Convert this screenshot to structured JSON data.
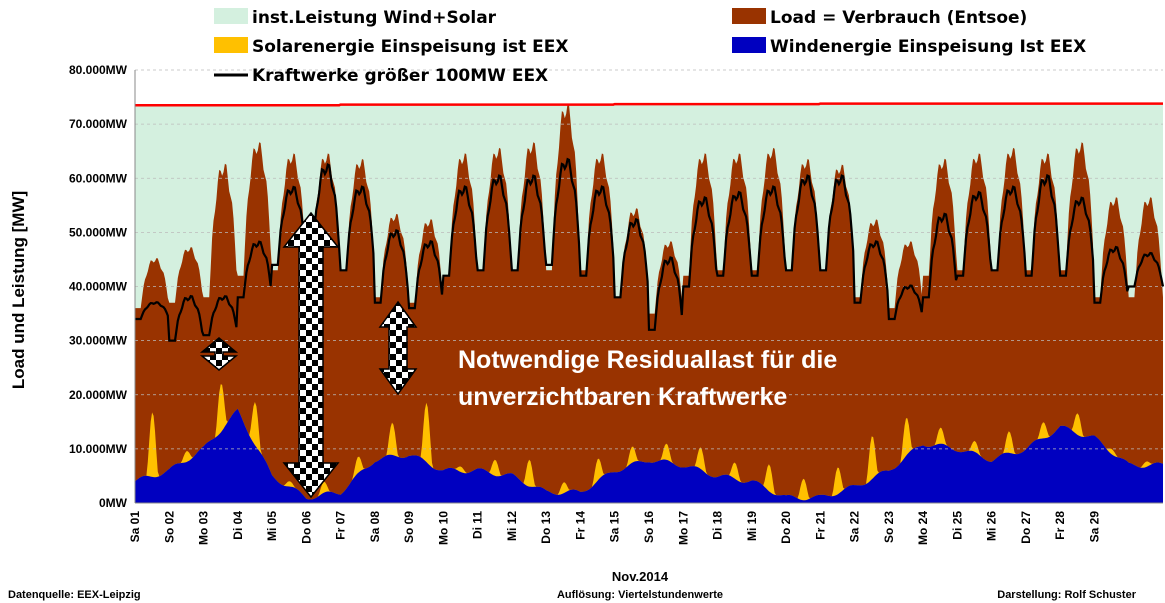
{
  "chart_data": {
    "type": "area",
    "title": "",
    "xlabel": "Nov.2014",
    "ylabel": "Load und Leistung  [MW]",
    "ylim": [
      0,
      80000
    ],
    "yticks": [
      "0MW",
      "10.000MW",
      "20.000MW",
      "30.000MW",
      "40.000MW",
      "50.000MW",
      "60.000MW",
      "70.000MW",
      "80.000MW"
    ],
    "ytick_values": [
      0,
      10000,
      20000,
      30000,
      40000,
      50000,
      60000,
      70000,
      80000
    ],
    "grid": true,
    "legend_position": "top",
    "categories": [
      "Sa 01",
      "So 02",
      "Mo 03",
      "Di 04",
      "Mi 05",
      "Do 06",
      "Fr 07",
      "Sa 08",
      "So 09",
      "Mo 10",
      "Di 11",
      "Mi 12",
      "Do 13",
      "Fr 14",
      "Sa 15",
      "So 16",
      "Mo 17",
      "Di 18",
      "Mi 19",
      "Do 20",
      "Fr 21",
      "Sa 22",
      "So 23",
      "Mo 24",
      "Di 25",
      "Mi 26",
      "Do 27",
      "Fr 28",
      "Sa 29",
      ""
    ],
    "series": [
      {
        "name": "inst.Leistung Wind+Solar",
        "color": "#d4f0df",
        "values": [
          73500,
          73500,
          73500,
          73500,
          73500,
          73500,
          73600,
          73600,
          73600,
          73600,
          73600,
          73600,
          73600,
          73600,
          73700,
          73700,
          73700,
          73700,
          73700,
          73700,
          73800,
          73800,
          73800,
          73800,
          73800,
          73800,
          73800,
          73800,
          73800,
          73800
        ]
      },
      {
        "name": "Load =  Verbrauch (Entsoe)",
        "color": "#993300",
        "peak": [
          45000,
          47000,
          62000,
          66000,
          64000,
          64000,
          63000,
          53000,
          52000,
          64000,
          65000,
          66000,
          73000,
          64000,
          54000,
          48000,
          64000,
          64000,
          65000,
          63000,
          62000,
          52000,
          48000,
          63000,
          64000,
          65000,
          64000,
          66000,
          56000,
          56000
        ],
        "min": [
          36000,
          37000,
          38000,
          42000,
          43000,
          43000,
          43000,
          38000,
          37000,
          42000,
          43000,
          43000,
          43000,
          43000,
          38000,
          35000,
          42000,
          43000,
          43000,
          43000,
          43000,
          38000,
          36000,
          42000,
          43000,
          43000,
          43000,
          43000,
          38000,
          38000
        ]
      },
      {
        "name": "Solarenergie Einspeisung ist EEX",
        "color": "#ffc000",
        "peak": [
          12000,
          2000,
          9000,
          8000,
          1000,
          2000,
          3000,
          6000,
          11000,
          1000,
          3000,
          5000,
          2000,
          4000,
          3000,
          3000,
          4000,
          3000,
          5000,
          4000,
          5000,
          8000,
          7000,
          3000,
          2000,
          4000,
          3000,
          4000,
          1000,
          1000
        ]
      },
      {
        "name": "Windenergie Einspeisung Ist EEX",
        "color": "#0000c0",
        "values": [
          4000,
          6000,
          10000,
          17000,
          5000,
          1000,
          2000,
          8000,
          9000,
          6000,
          6000,
          5000,
          2000,
          2000,
          6000,
          8000,
          7000,
          5000,
          4000,
          1000,
          1000,
          3000,
          6000,
          11000,
          10000,
          8000,
          10000,
          14000,
          12000,
          7000
        ]
      },
      {
        "name": "Kraftwerke größer 100MW  EEX",
        "color": "#000000",
        "peak": [
          37000,
          38000,
          38000,
          48000,
          58000,
          62000,
          58000,
          50000,
          48000,
          58000,
          60000,
          60000,
          63000,
          58000,
          52000,
          45000,
          56000,
          57000,
          58000,
          60000,
          60000,
          48000,
          40000,
          53000,
          57000,
          58000,
          60000,
          56000,
          47000,
          46000
        ],
        "min": [
          34000,
          30000,
          31000,
          38000,
          44000,
          43000,
          43000,
          37000,
          36000,
          42000,
          43000,
          43000,
          44000,
          42000,
          38000,
          32000,
          40000,
          42000,
          42000,
          43000,
          43000,
          37000,
          34000,
          38000,
          42000,
          43000,
          42000,
          42000,
          37000,
          40000
        ]
      }
    ],
    "annotations": [
      "Notwendige Residuallast für die",
      "unverzichtbaren Kraftwerke"
    ]
  },
  "footer": {
    "source": "Datenquelle:  EEX-Leipzig",
    "resolution": "Auflösung: Viertelstundenwerte",
    "author": "Darstellung: Rolf Schuster"
  }
}
